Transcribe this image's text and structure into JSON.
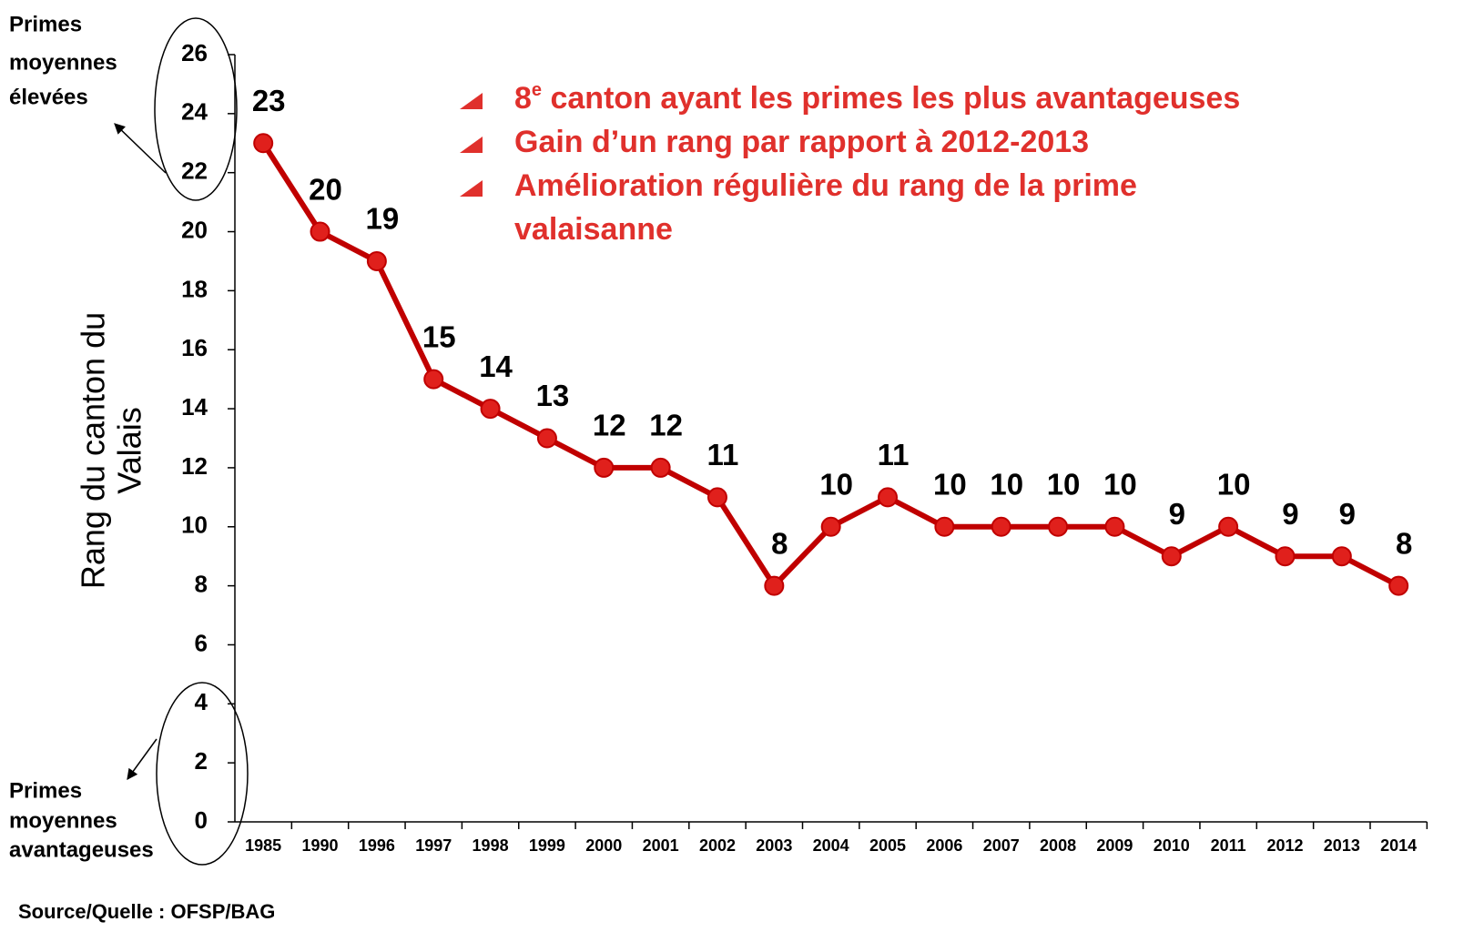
{
  "chart_data": {
    "type": "line",
    "y_label": [
      "Rang du canton du",
      "Valais"
    ],
    "categories": [
      "1985",
      "1990",
      "1996",
      "1997",
      "1998",
      "1999",
      "2000",
      "2001",
      "2002",
      "2003",
      "2004",
      "2005",
      "2006",
      "2007",
      "2008",
      "2009",
      "2010",
      "2011",
      "2012",
      "2013",
      "2014"
    ],
    "series": [
      {
        "name": "Valais",
        "color": "#c00000",
        "values": [
          23,
          20,
          19,
          15,
          14,
          13,
          12,
          12,
          11,
          8,
          10,
          11,
          10,
          10,
          10,
          10,
          9,
          10,
          9,
          9,
          8
        ]
      }
    ],
    "ylim": [
      0,
      26
    ],
    "yticks": [
      0,
      2,
      4,
      6,
      8,
      10,
      12,
      14,
      16,
      18,
      20,
      22,
      24,
      26
    ],
    "annotations": {
      "top": [
        "Primes",
        "moyennes",
        "élevées"
      ],
      "bottom": [
        "Primes",
        "moyennes",
        "avantageuses"
      ],
      "bullets": [
        {
          "number": "8",
          "sup": "e",
          "text": " canton ayant les primes les plus avantageuses"
        },
        {
          "lines": [
            "Gain d’un rang par rapport à 2012-2013"
          ]
        },
        {
          "lines": [
            "Amélioration régulière du rang de la prime",
            "valaisanne"
          ]
        }
      ]
    },
    "source": "Source/Quelle : OFSP/BAG"
  }
}
